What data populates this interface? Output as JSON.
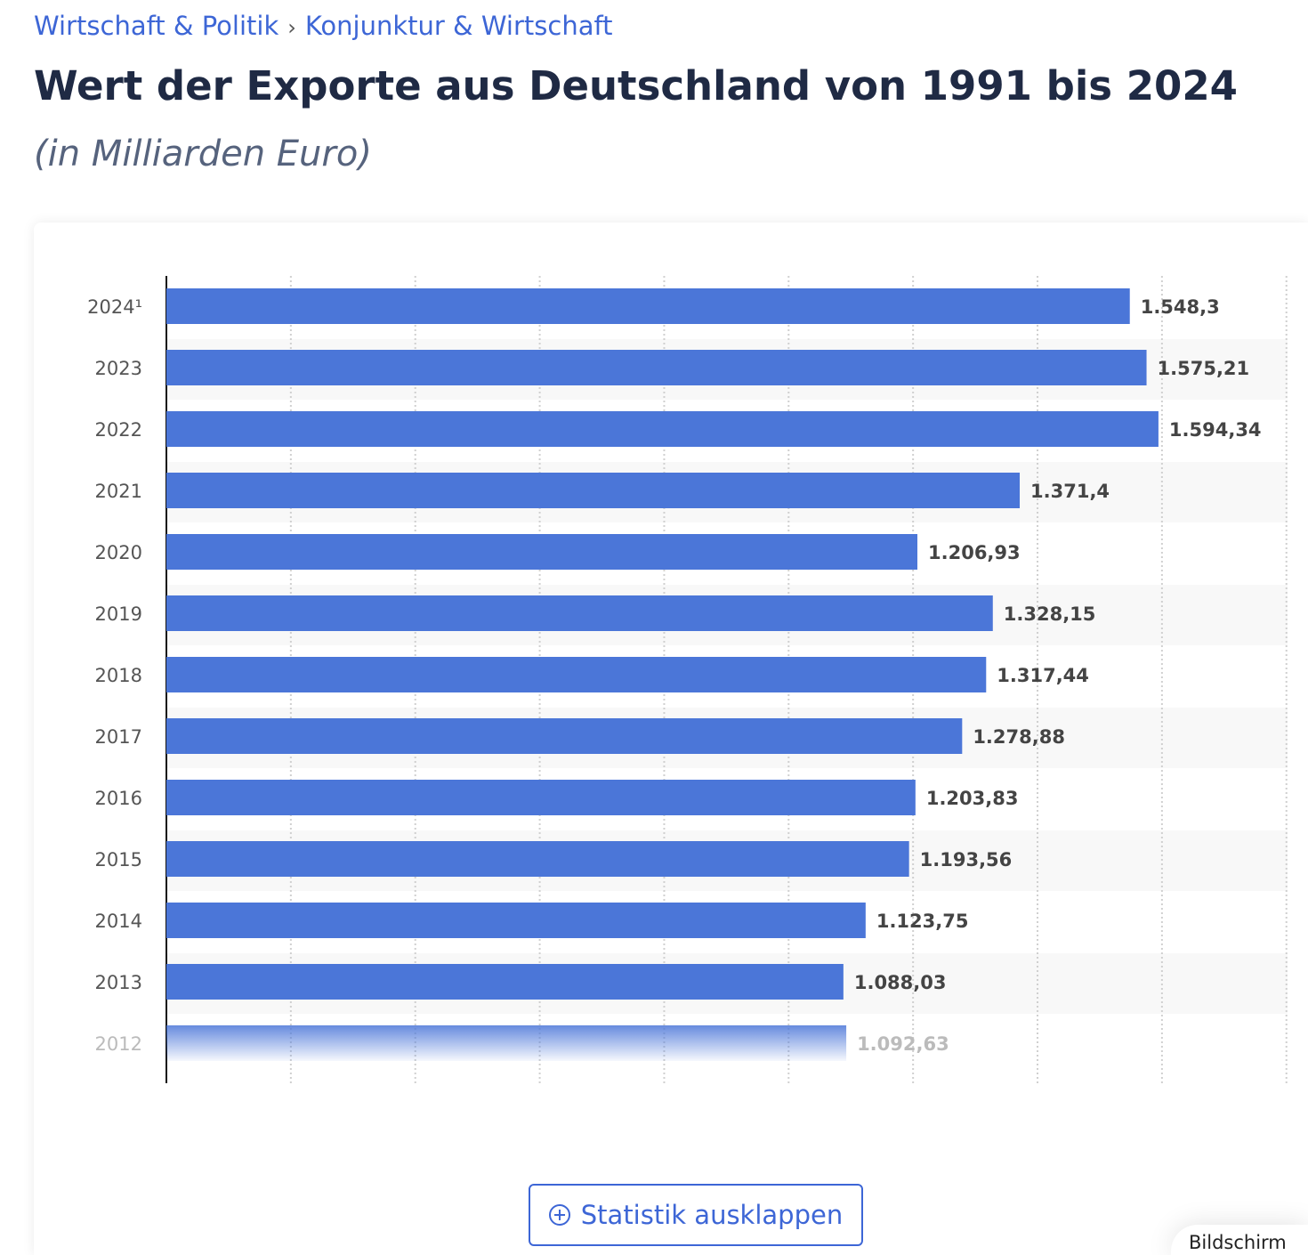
{
  "breadcrumb": [
    "Wirtschaft & Politik",
    "Konjunktur & Wirtschaft"
  ],
  "breadcrumb_separator": "›",
  "title": "Wert der Exporte aus Deutschland von 1991 bis 2024",
  "subtitle": "(in Milliarden Euro)",
  "expand_button": {
    "label": "Statistik ausklappen",
    "icon": "plus-circle-icon"
  },
  "screen_pill": {
    "label": "Bildschirm"
  },
  "colors": {
    "bar": "#4b76d8",
    "accent": "#3d66d6",
    "stripe": "#f8f8f8"
  },
  "chart_data": {
    "type": "bar",
    "orientation": "horizontal",
    "categories": [
      "2024¹",
      "2023",
      "2022",
      "2021",
      "2020",
      "2019",
      "2018",
      "2017",
      "2016",
      "2015",
      "2014",
      "2013",
      "2012"
    ],
    "values": [
      1548.3,
      1575.21,
      1594.34,
      1371.4,
      1206.93,
      1328.15,
      1317.44,
      1278.88,
      1203.83,
      1193.56,
      1123.75,
      1088.03,
      1092.63
    ],
    "data_labels": [
      "1.548,3",
      "1.575,21",
      "1.594,34",
      "1.371,4",
      "1.206,93",
      "1.328,15",
      "1.317,44",
      "1.278,88",
      "1.203,83",
      "1.193,56",
      "1.123,75",
      "1.088,03",
      "1.092,63"
    ],
    "xlim": [
      0,
      1800
    ],
    "grid_step": 200,
    "grid": true,
    "faded_last_row": true
  }
}
